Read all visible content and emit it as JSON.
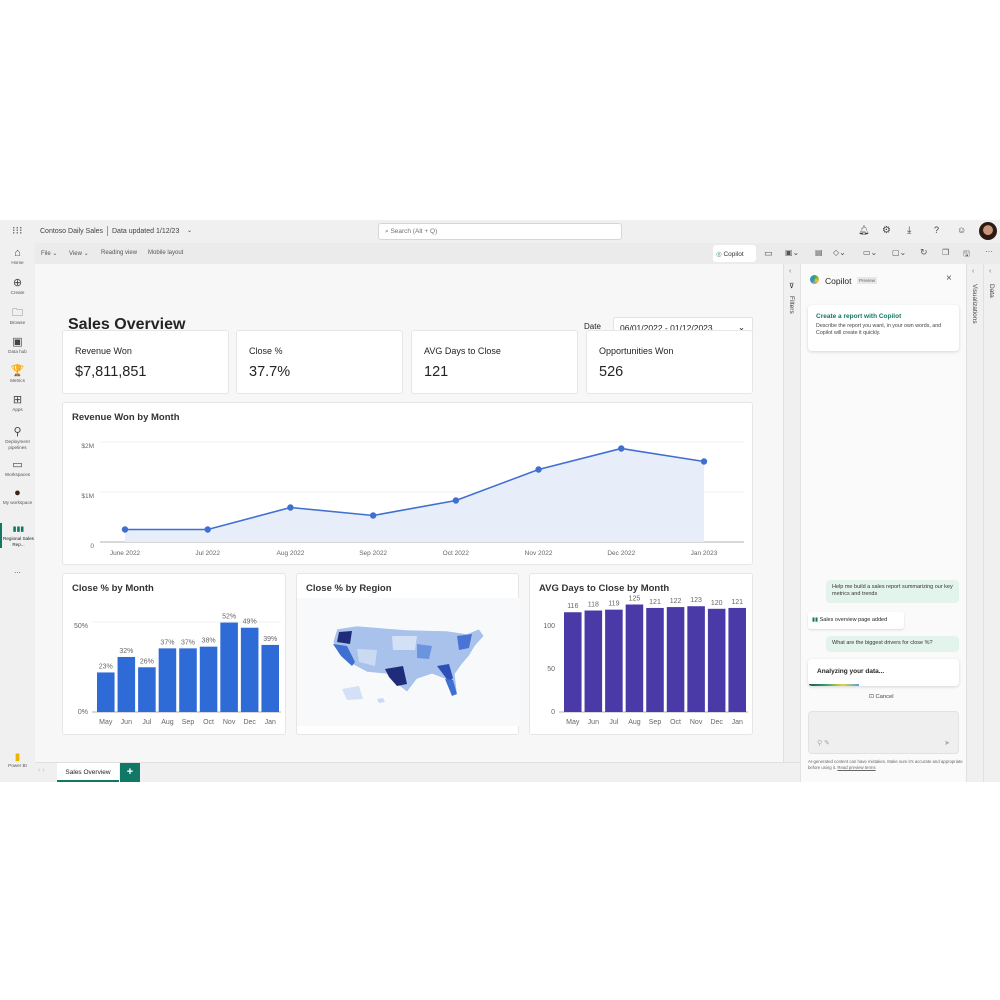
{
  "app": {
    "name": "Power BI",
    "report_title": "Contoso Daily Sales",
    "data_updated": "Data updated 1/12/23"
  },
  "search": {
    "placeholder": "Search (Alt + Q)"
  },
  "topbar_icons": [
    "bell-icon",
    "gear-icon",
    "download-icon",
    "help-icon",
    "feedback-icon",
    "avatar"
  ],
  "toolbar": {
    "file": "File",
    "view": "View",
    "reading_view": "Reading view",
    "mobile_layout": "Mobile layout",
    "copilot": "Copilot"
  },
  "nav": {
    "items": [
      {
        "label": "Home",
        "icon": "⌂"
      },
      {
        "label": "Create",
        "icon": "⊕"
      },
      {
        "label": "Browse",
        "icon": "🗀"
      },
      {
        "label": "Data hub",
        "icon": "▣"
      },
      {
        "label": "Metrics",
        "icon": "🏆"
      },
      {
        "label": "Apps",
        "icon": "⊞"
      },
      {
        "label": "Deployment pipelines",
        "icon": "⚲"
      },
      {
        "label": "Workspaces",
        "icon": "▭"
      },
      {
        "label": "My workspace",
        "icon": "●"
      },
      {
        "label": "Regional Sales Rep...",
        "icon": "▮▮▮"
      }
    ],
    "more": "...",
    "brand": "Power BI"
  },
  "page": {
    "title": "Sales Overview",
    "date_label": "Date",
    "date_range": "06/01/2022 - 01/12/2023"
  },
  "kpis": [
    {
      "label": "Revenue Won",
      "value": "$7,811,851"
    },
    {
      "label": "Close %",
      "value": "37.7%"
    },
    {
      "label": "AVG Days to Close",
      "value": "121"
    },
    {
      "label": "Opportunities Won",
      "value": "526"
    }
  ],
  "chart_data": [
    {
      "type": "area",
      "title": "Revenue Won by Month",
      "categories": [
        "June 2022",
        "Jul 2022",
        "Aug 2022",
        "Sep 2022",
        "Oct 2022",
        "Nov 2022",
        "Dec 2022",
        "Jan 2023"
      ],
      "values": [
        250000,
        250000,
        690000,
        530000,
        830000,
        1450000,
        1870000,
        1610000
      ],
      "ylim": [
        0,
        2000000
      ],
      "yticks": [
        "0",
        "$1M",
        "$2M"
      ],
      "grid": true,
      "color": "#3f6fd1"
    },
    {
      "type": "bar",
      "title": "Close % by Month",
      "categories": [
        "May",
        "Jun",
        "Jul",
        "Aug",
        "Sep",
        "Oct",
        "Nov",
        "Dec",
        "Jan"
      ],
      "values": [
        23,
        32,
        26,
        37,
        37,
        38,
        52,
        49,
        39
      ],
      "labels": [
        "23%",
        "32%",
        "26%",
        "37%",
        "37%",
        "38%",
        "52%",
        "49%",
        "39%"
      ],
      "ylim": [
        0,
        50
      ],
      "yticks": [
        "0%",
        "50%"
      ],
      "grid": true,
      "color": "#2e6bd6"
    },
    {
      "type": "map",
      "title": "Close % by Region"
    },
    {
      "type": "bar",
      "title": "AVG Days to Close by Month",
      "categories": [
        "May",
        "Jun",
        "Jul",
        "Aug",
        "Sep",
        "Oct",
        "Nov",
        "Dec",
        "Jan"
      ],
      "values": [
        116,
        118,
        119,
        125,
        121,
        122,
        123,
        120,
        121
      ],
      "labels": [
        "116",
        "118",
        "119",
        "125",
        "121",
        "122",
        "123",
        "120",
        "121"
      ],
      "ylim": [
        0,
        100
      ],
      "yticks": [
        "0",
        "50",
        "100"
      ],
      "grid": false,
      "color": "#4a3aa8"
    }
  ],
  "panes": {
    "filters": "Filters",
    "visualizations": "Visualizations",
    "data": "Data"
  },
  "copilot": {
    "title": "Copilot",
    "badge": "Preview",
    "card_title": "Create a report with Copilot",
    "card_text": "Describe the report you want, in your own words, and Copilot will create it quickly.",
    "messages": [
      {
        "role": "user",
        "text": "Help me build a sales report summarizing our key metrics and trends"
      },
      {
        "role": "assistant",
        "text": "Sales overview page added"
      },
      {
        "role": "user",
        "text": "What are the biggest drivers for close %?"
      }
    ],
    "status": "Analyzing your data...",
    "cancel": "Cancel",
    "disclaimer": "AI-generated content can have mistakes. Make sure it's accurate and appropriate before using it.",
    "terms_link": "Read preview terms"
  },
  "tabs": {
    "pages": [
      "Sales Overview"
    ],
    "add": "+"
  },
  "colors": {
    "accent": "#117865",
    "line": "#3f6fd1",
    "bar1": "#2e6bd6",
    "bar2": "#4a3aa8",
    "map_dark": "#1e2a78"
  }
}
